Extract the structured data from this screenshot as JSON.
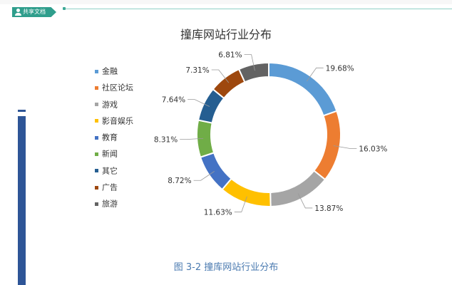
{
  "header": {
    "tag_label": "共享文档",
    "tag_icon": "user-icon"
  },
  "chart_data": {
    "type": "pie",
    "variant": "donut",
    "title": "撞库网站行业分布",
    "caption": "图 3-2  撞库网站行业分布",
    "legend_placement": "left",
    "categories": [
      "金融",
      "社区论坛",
      "游戏",
      "影音娱乐",
      "教育",
      "新闻",
      "其它",
      "广告",
      "旅游"
    ],
    "values": [
      19.68,
      16.03,
      13.87,
      11.63,
      8.72,
      8.31,
      7.64,
      7.31,
      6.81
    ],
    "data_labels": [
      "19.68%",
      "16.03%",
      "13.87%",
      "11.63%",
      "8.72%",
      "8.31%",
      "7.64%",
      "7.31%",
      "6.81%"
    ],
    "colors": [
      "#5b9bd5",
      "#ed7d31",
      "#a5a5a5",
      "#ffc000",
      "#4472c4",
      "#70ad47",
      "#255e91",
      "#9e480e",
      "#636363"
    ]
  }
}
